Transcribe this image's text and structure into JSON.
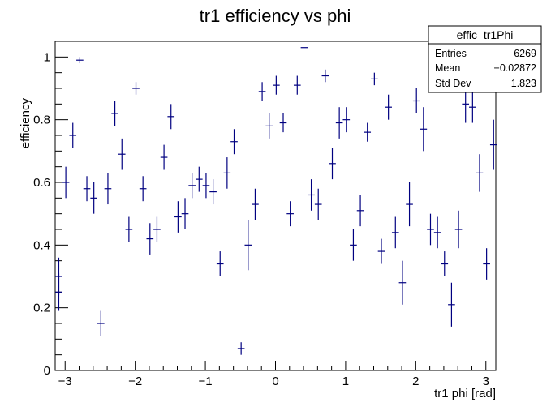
{
  "chart_data": {
    "type": "scatter",
    "title": "tr1 efficiency vs phi",
    "xlabel": "tr1 phi [rad]",
    "ylabel": "efficiency",
    "xlim": [
      -3.1416,
      3.1416
    ],
    "ylim": [
      0,
      1.05
    ],
    "xticks": [
      "−3",
      "−2",
      "−1",
      "0",
      "1",
      "2",
      "3"
    ],
    "yticks": [
      "0",
      "0.2",
      "0.4",
      "0.6",
      "0.8",
      "1"
    ],
    "grid": false,
    "marker_color": "#000080",
    "stats_box": {
      "name": "effic_tr1Phi",
      "rows": [
        {
          "label": "Entries",
          "value": "6269"
        },
        {
          "label": "Mean",
          "value": "−0.02872"
        },
        {
          "label": "Std Dev",
          "value": "1.823"
        }
      ]
    },
    "points": [
      {
        "x": -3.09,
        "y": 0.3,
        "err": 0.06
      },
      {
        "x": -3.09,
        "y": 0.25,
        "err": 0.06
      },
      {
        "x": -2.99,
        "y": 0.6,
        "err": 0.05
      },
      {
        "x": -2.89,
        "y": 0.75,
        "err": 0.04
      },
      {
        "x": -2.79,
        "y": 0.99,
        "err": 0.01
      },
      {
        "x": -2.69,
        "y": 0.58,
        "err": 0.04
      },
      {
        "x": -2.59,
        "y": 0.55,
        "err": 0.05
      },
      {
        "x": -2.49,
        "y": 0.15,
        "err": 0.04
      },
      {
        "x": -2.39,
        "y": 0.58,
        "err": 0.05
      },
      {
        "x": -2.29,
        "y": 0.82,
        "err": 0.04
      },
      {
        "x": -2.19,
        "y": 0.69,
        "err": 0.05
      },
      {
        "x": -2.09,
        "y": 0.45,
        "err": 0.04
      },
      {
        "x": -1.99,
        "y": 0.9,
        "err": 0.02
      },
      {
        "x": -1.89,
        "y": 0.58,
        "err": 0.04
      },
      {
        "x": -1.79,
        "y": 0.42,
        "err": 0.05
      },
      {
        "x": -1.69,
        "y": 0.45,
        "err": 0.04
      },
      {
        "x": -1.59,
        "y": 0.68,
        "err": 0.04
      },
      {
        "x": -1.49,
        "y": 0.81,
        "err": 0.04
      },
      {
        "x": -1.39,
        "y": 0.49,
        "err": 0.05
      },
      {
        "x": -1.29,
        "y": 0.5,
        "err": 0.05
      },
      {
        "x": -1.19,
        "y": 0.59,
        "err": 0.04
      },
      {
        "x": -1.09,
        "y": 0.61,
        "err": 0.04
      },
      {
        "x": -0.99,
        "y": 0.59,
        "err": 0.04
      },
      {
        "x": -0.89,
        "y": 0.57,
        "err": 0.04
      },
      {
        "x": -0.79,
        "y": 0.34,
        "err": 0.04
      },
      {
        "x": -0.69,
        "y": 0.63,
        "err": 0.05
      },
      {
        "x": -0.59,
        "y": 0.73,
        "err": 0.04
      },
      {
        "x": -0.49,
        "y": 0.07,
        "err": 0.02
      },
      {
        "x": -0.39,
        "y": 0.4,
        "err": 0.08
      },
      {
        "x": -0.29,
        "y": 0.53,
        "err": 0.05
      },
      {
        "x": -0.19,
        "y": 0.89,
        "err": 0.03
      },
      {
        "x": -0.09,
        "y": 0.78,
        "err": 0.04
      },
      {
        "x": 0.01,
        "y": 0.91,
        "err": 0.03
      },
      {
        "x": 0.11,
        "y": 0.79,
        "err": 0.03
      },
      {
        "x": 0.21,
        "y": 0.5,
        "err": 0.04
      },
      {
        "x": 0.31,
        "y": 0.91,
        "err": 0.03
      },
      {
        "x": 0.41,
        "y": 1.03,
        "err": 0.0
      },
      {
        "x": 0.51,
        "y": 0.56,
        "err": 0.05
      },
      {
        "x": 0.61,
        "y": 0.53,
        "err": 0.05
      },
      {
        "x": 0.71,
        "y": 0.94,
        "err": 0.02
      },
      {
        "x": 0.81,
        "y": 0.66,
        "err": 0.05
      },
      {
        "x": 0.91,
        "y": 0.79,
        "err": 0.05
      },
      {
        "x": 1.01,
        "y": 0.8,
        "err": 0.04
      },
      {
        "x": 1.11,
        "y": 0.4,
        "err": 0.05
      },
      {
        "x": 1.21,
        "y": 0.51,
        "err": 0.05
      },
      {
        "x": 1.31,
        "y": 0.76,
        "err": 0.03
      },
      {
        "x": 1.41,
        "y": 0.93,
        "err": 0.02
      },
      {
        "x": 1.51,
        "y": 0.38,
        "err": 0.04
      },
      {
        "x": 1.61,
        "y": 0.84,
        "err": 0.04
      },
      {
        "x": 1.71,
        "y": 0.44,
        "err": 0.05
      },
      {
        "x": 1.81,
        "y": 0.28,
        "err": 0.07
      },
      {
        "x": 1.91,
        "y": 0.53,
        "err": 0.07
      },
      {
        "x": 2.01,
        "y": 0.86,
        "err": 0.04
      },
      {
        "x": 2.11,
        "y": 0.77,
        "err": 0.07
      },
      {
        "x": 2.21,
        "y": 0.45,
        "err": 0.05
      },
      {
        "x": 2.31,
        "y": 0.44,
        "err": 0.05
      },
      {
        "x": 2.41,
        "y": 0.34,
        "err": 0.04
      },
      {
        "x": 2.51,
        "y": 0.21,
        "err": 0.07
      },
      {
        "x": 2.61,
        "y": 0.45,
        "err": 0.06
      },
      {
        "x": 2.71,
        "y": 0.85,
        "err": 0.06
      },
      {
        "x": 2.81,
        "y": 0.84,
        "err": 0.05
      },
      {
        "x": 2.91,
        "y": 0.63,
        "err": 0.06
      },
      {
        "x": 3.01,
        "y": 0.34,
        "err": 0.05
      },
      {
        "x": 3.11,
        "y": 0.72,
        "err": 0.08
      }
    ]
  }
}
